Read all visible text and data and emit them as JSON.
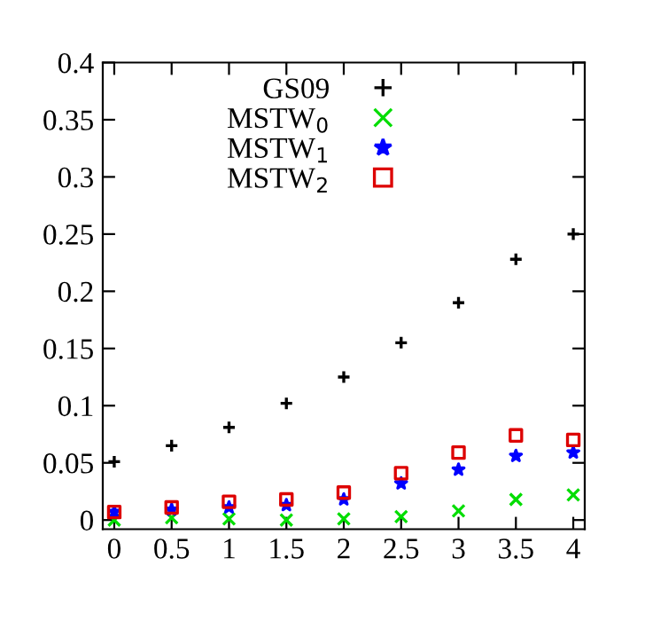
{
  "chart_data": {
    "type": "scatter",
    "x": [
      0,
      0.5,
      1,
      1.5,
      2,
      2.5,
      3,
      3.5,
      4
    ],
    "series": [
      {
        "name": "GS09",
        "color": "#000000",
        "marker": "cross",
        "values": [
          0.051,
          0.065,
          0.081,
          0.102,
          0.125,
          0.155,
          0.19,
          0.228,
          0.25
        ]
      },
      {
        "name": "MSTW$_{0}$",
        "color": "#00dd00",
        "marker": "x",
        "values": [
          0,
          0.002,
          0.001,
          0,
          0.001,
          0.003,
          0.008,
          0.018,
          0.022
        ]
      },
      {
        "name": "MSTW$_{1}$",
        "color": "#0000ff",
        "marker": "star",
        "values": [
          0.007,
          0.009,
          0.011,
          0.013,
          0.018,
          0.032,
          0.044,
          0.056,
          0.059
        ]
      },
      {
        "name": "MSTW$_{2}$",
        "color": "#dd0000",
        "marker": "square",
        "values": [
          0.007,
          0.011,
          0.016,
          0.018,
          0.024,
          0.041,
          0.059,
          0.074,
          0.07
        ]
      }
    ],
    "xlim": [
      -0.1,
      4.1
    ],
    "xticks": [
      0,
      0.5,
      1,
      1.5,
      2,
      2.5,
      3,
      3.5,
      4
    ],
    "ylim": [
      -0.008,
      0.4
    ],
    "yticks": [
      0,
      0.05,
      0.1,
      0.15,
      0.2,
      0.25,
      0.3,
      0.35,
      0.4
    ],
    "grid": false,
    "legend": "top"
  }
}
